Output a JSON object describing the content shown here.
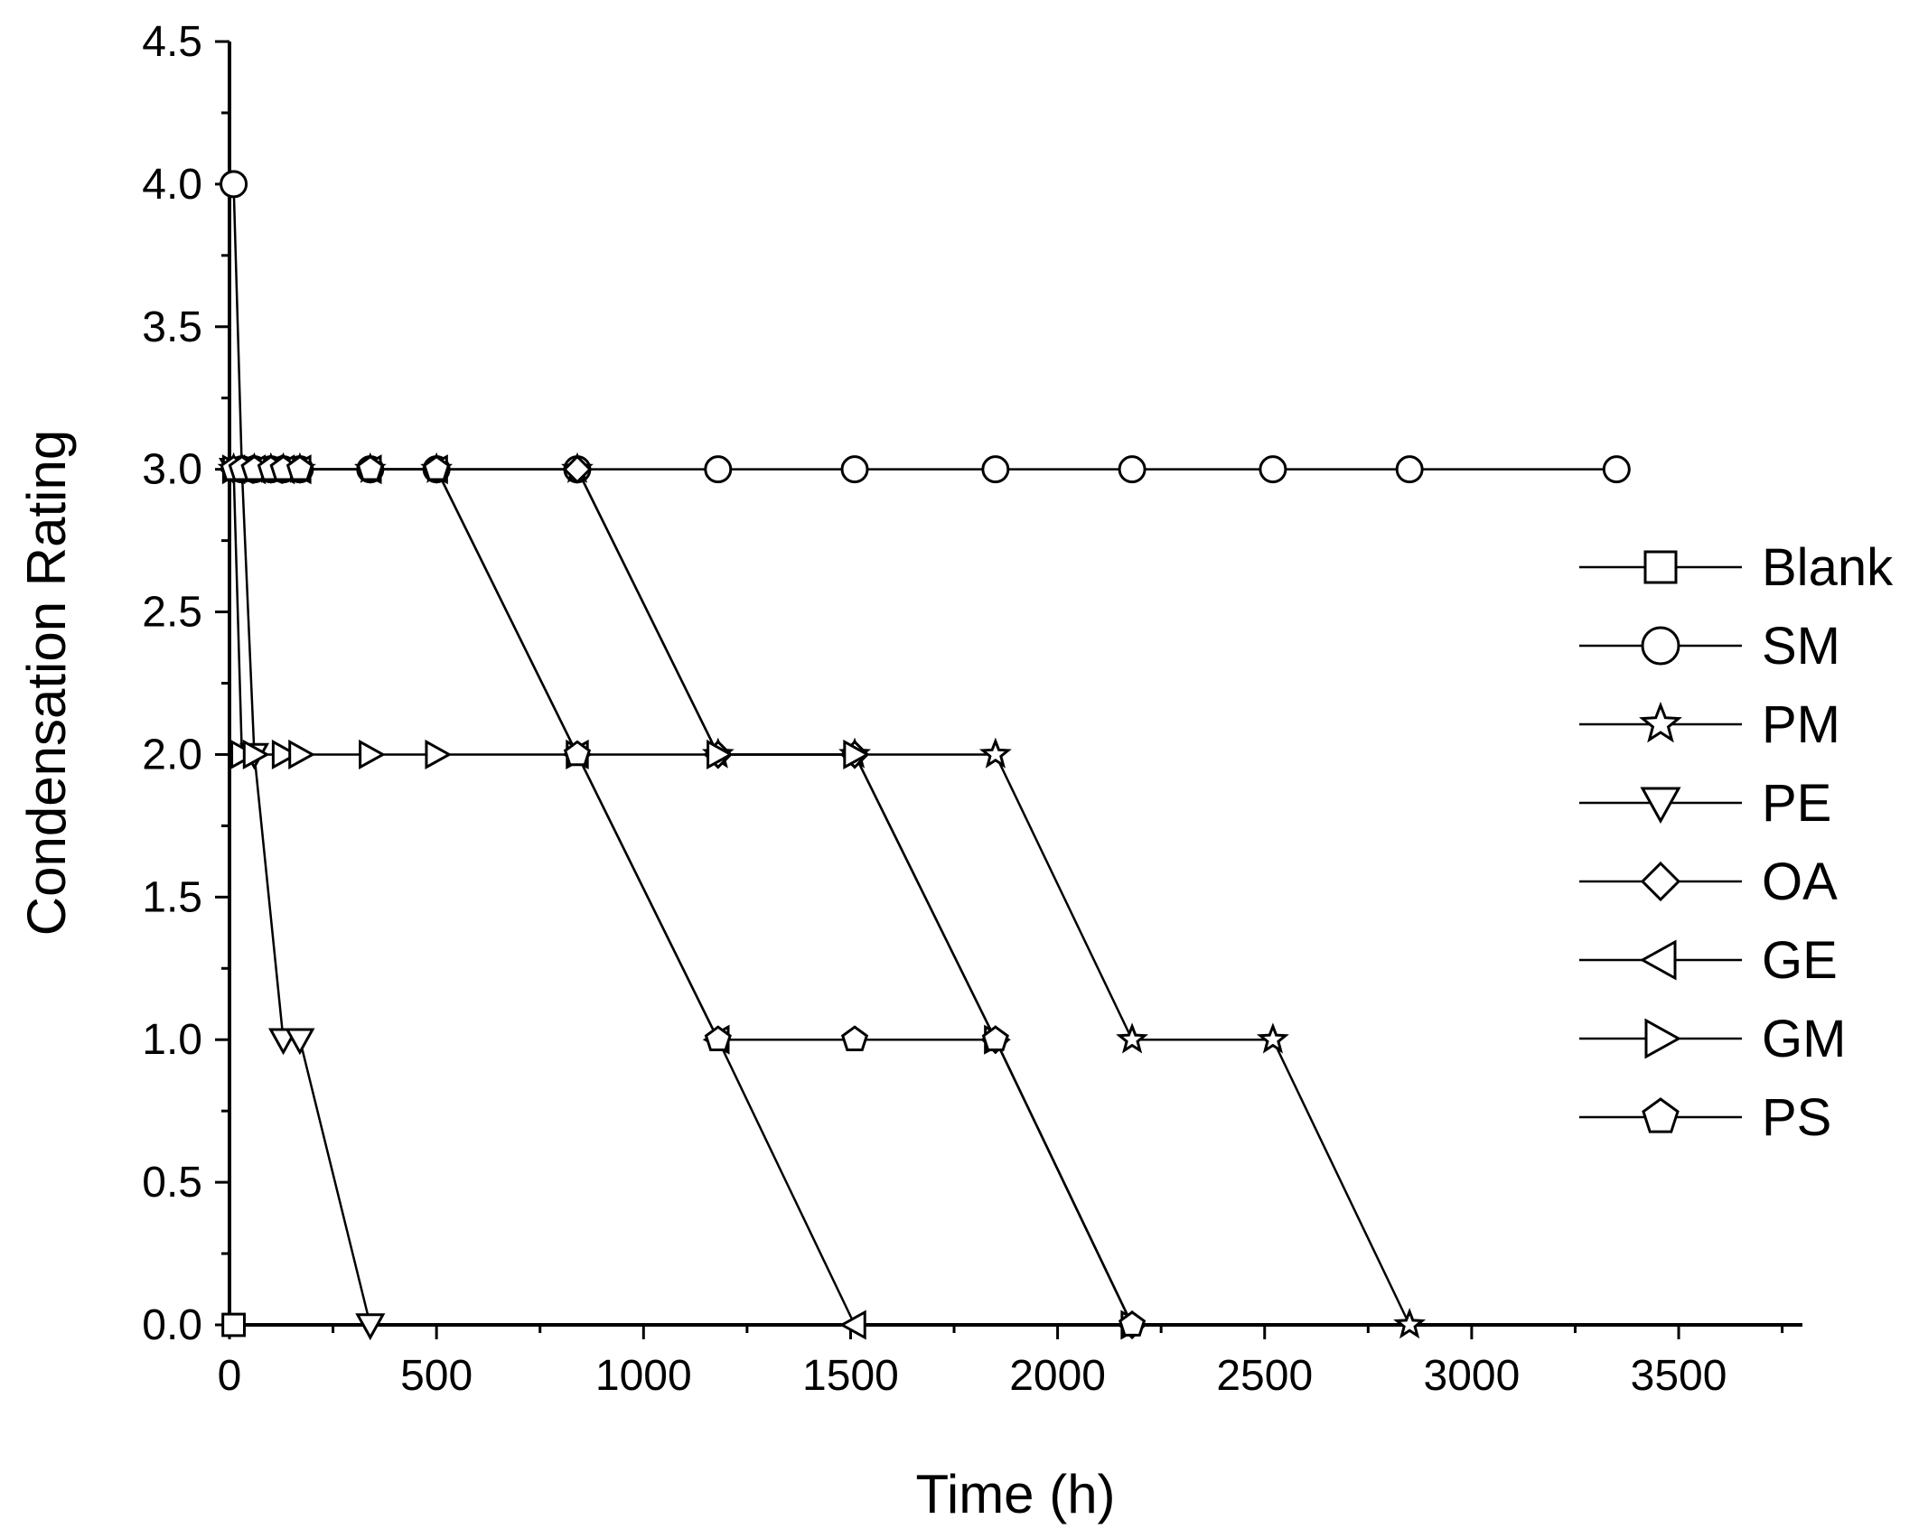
{
  "chart_data": {
    "type": "line",
    "title": "",
    "xlabel": "Time (h)",
    "ylabel": "Condensation Rating",
    "xlim": [
      0,
      3750
    ],
    "ylim": [
      0,
      4.5
    ],
    "x_ticks": [
      "0",
      "500",
      "1000",
      "1500",
      "2000",
      "2500",
      "3000",
      "3500"
    ],
    "y_ticks": [
      "0.0",
      "0.5",
      "1.0",
      "1.5",
      "2.0",
      "2.5",
      "3.0",
      "3.5",
      "4.0",
      "4.5"
    ],
    "grid": false,
    "legend_position": "right",
    "series": [
      {
        "name": "Blank",
        "marker": "square",
        "x": [
          10
        ],
        "y": [
          0
        ]
      },
      {
        "name": "SM",
        "marker": "circle",
        "x": [
          10,
          30,
          60,
          100,
          130,
          170,
          340,
          500,
          840,
          1180,
          1510,
          1850,
          2180,
          2520,
          2850,
          3350
        ],
        "y": [
          4,
          3,
          3,
          3,
          3,
          3,
          3,
          3,
          3,
          3,
          3,
          3,
          3,
          3,
          3,
          3
        ]
      },
      {
        "name": "PM",
        "marker": "star",
        "x": [
          10,
          30,
          60,
          100,
          130,
          170,
          340,
          500,
          840,
          1180,
          1510,
          1850,
          2180,
          2520,
          2850
        ],
        "y": [
          3,
          3,
          3,
          3,
          3,
          3,
          3,
          3,
          3,
          2,
          2,
          2,
          1,
          1,
          0
        ]
      },
      {
        "name": "PE",
        "marker": "triangle-down",
        "x": [
          10,
          30,
          60,
          130,
          170,
          340
        ],
        "y": [
          3,
          3,
          2,
          1,
          1,
          0
        ]
      },
      {
        "name": "OA",
        "marker": "diamond",
        "x": [
          10,
          30,
          60,
          100,
          130,
          170,
          340,
          500,
          840,
          1180,
          1510,
          1850,
          2180
        ],
        "y": [
          3,
          3,
          3,
          3,
          3,
          3,
          3,
          3,
          3,
          2,
          2,
          1,
          0
        ]
      },
      {
        "name": "GE",
        "marker": "triangle-left",
        "x": [
          10,
          30,
          60,
          100,
          130,
          170,
          340,
          500,
          840,
          1180,
          1510
        ],
        "y": [
          3,
          3,
          3,
          3,
          3,
          3,
          3,
          3,
          2,
          1,
          0
        ]
      },
      {
        "name": "GM",
        "marker": "triangle-right",
        "x": [
          10,
          30,
          60,
          130,
          170,
          340,
          500,
          840,
          1180,
          1510,
          1850,
          2180
        ],
        "y": [
          3,
          2,
          2,
          2,
          2,
          2,
          2,
          2,
          2,
          2,
          1,
          0
        ]
      },
      {
        "name": "PS",
        "marker": "pentagon",
        "x": [
          10,
          30,
          60,
          100,
          130,
          170,
          340,
          500,
          840,
          1180,
          1510,
          1850,
          2180
        ],
        "y": [
          3,
          3,
          3,
          3,
          3,
          3,
          3,
          3,
          2,
          1,
          1,
          1,
          0
        ]
      }
    ]
  }
}
